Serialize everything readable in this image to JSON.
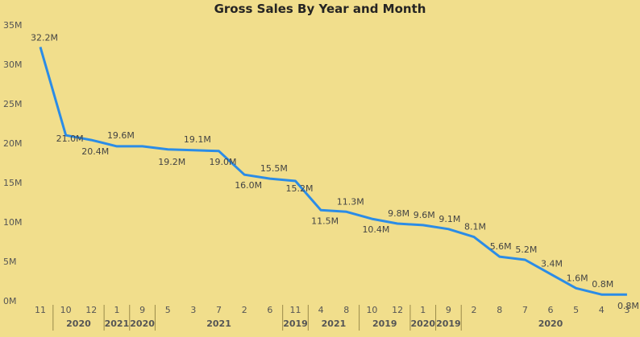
{
  "chart_data": {
    "type": "line",
    "title": "Gross Sales By Year and Month",
    "xlabel": "",
    "ylabel": "",
    "ylim": [
      0,
      35
    ],
    "y_ticks": [
      "0M",
      "5M",
      "10M",
      "15M",
      "20M",
      "25M",
      "30M",
      "35M"
    ],
    "grid": false,
    "legend": "none",
    "line_color": "#2b8ce6",
    "categories": [
      "11",
      "10",
      "12",
      "1",
      "9",
      "5",
      "3",
      "7",
      "2",
      "6",
      "11",
      "4",
      "8",
      "10",
      "12",
      "1",
      "9",
      "2",
      "8",
      "7",
      "6",
      "5",
      "4",
      "3"
    ],
    "values": [
      32.2,
      21.0,
      20.4,
      19.6,
      19.6,
      19.2,
      19.1,
      19.0,
      16.0,
      15.5,
      15.2,
      11.5,
      11.3,
      10.4,
      9.8,
      9.6,
      9.1,
      8.1,
      5.6,
      5.2,
      3.4,
      1.6,
      0.8,
      0.8
    ],
    "data_labels": [
      "32.2M",
      "21.0M",
      "20.4M",
      "19.6M",
      "",
      "19.2M",
      "19.1M",
      "19.0M",
      "16.0M",
      "15.5M",
      "15.2M",
      "11.5M",
      "11.3M",
      "10.4M",
      "9.8M",
      "9.6M",
      "9.1M",
      "8.1M",
      "5.6M",
      "5.2M",
      "3.4M",
      "1.6M",
      "0.8M",
      "0.8M"
    ],
    "year_groups": [
      {
        "label": "",
        "start": 0,
        "end": 0
      },
      {
        "label": "2020",
        "start": 1,
        "end": 2
      },
      {
        "label": "2021",
        "start": 3,
        "end": 3
      },
      {
        "label": "2020",
        "start": 4,
        "end": 4
      },
      {
        "label": "2021",
        "start": 5,
        "end": 9
      },
      {
        "label": "2019",
        "start": 10,
        "end": 10
      },
      {
        "label": "2021",
        "start": 11,
        "end": 12
      },
      {
        "label": "2019",
        "start": 13,
        "end": 14
      },
      {
        "label": "2020",
        "start": 15,
        "end": 15
      },
      {
        "label": "2019",
        "start": 16,
        "end": 16
      },
      {
        "label": "2020",
        "start": 17,
        "end": 23
      }
    ]
  }
}
